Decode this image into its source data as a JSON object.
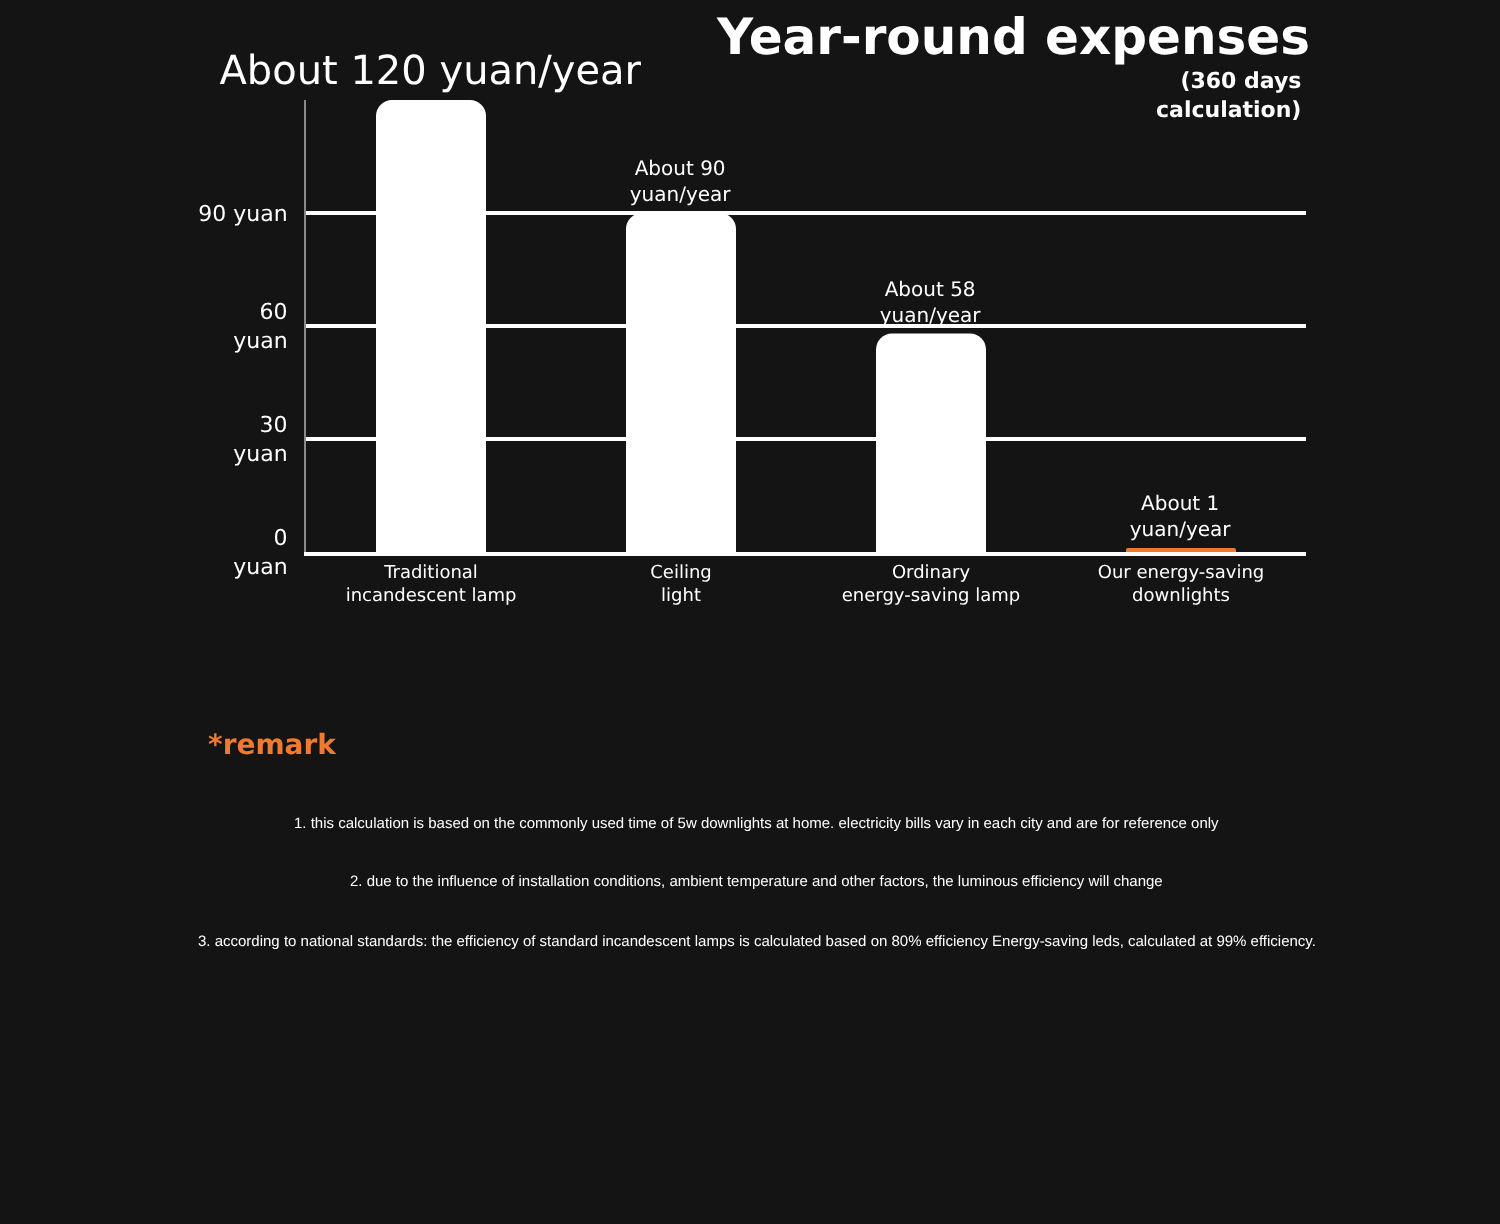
{
  "chart_data": {
    "type": "bar",
    "title": "Year-round expenses",
    "subtitle": "(360 days\ncalculation)",
    "categories": [
      "Traditional\nincandescent lamp",
      "Ceiling\nlight",
      "Ordinary\nenergy-saving lamp",
      "Our energy-saving\ndownlights"
    ],
    "values": [
      120,
      90,
      58,
      1
    ],
    "colors": [
      "#ffffff",
      "#ffffff",
      "#ffffff",
      "#f07a30"
    ],
    "value_labels": [
      "About 120 yuan/year",
      "About 90\nyuan/year",
      "About 58\nyuan/year",
      "About 1\nyuan/year"
    ],
    "ylim": [
      0,
      120
    ],
    "yticks": [
      {
        "value": 0,
        "label": "0\nyuan"
      },
      {
        "value": 30,
        "label": "30\nyuan"
      },
      {
        "value": 60,
        "label": "60\nyuan"
      },
      {
        "value": 90,
        "label": "90 yuan"
      }
    ],
    "grid": "y",
    "annotations": [
      "*remark",
      "1. this calculation is based on the commonly used time of 5w downlights at home. electricity bills vary in each city and are for reference only",
      "2. due to the influence of installation conditions, ambient temperature and other factors, the luminous efficiency will change",
      "3. according to national standards: the efficiency of standard incandescent lamps is calculated based on 80% efficiency Energy-saving leds, calculated at 99% efficiency."
    ]
  }
}
